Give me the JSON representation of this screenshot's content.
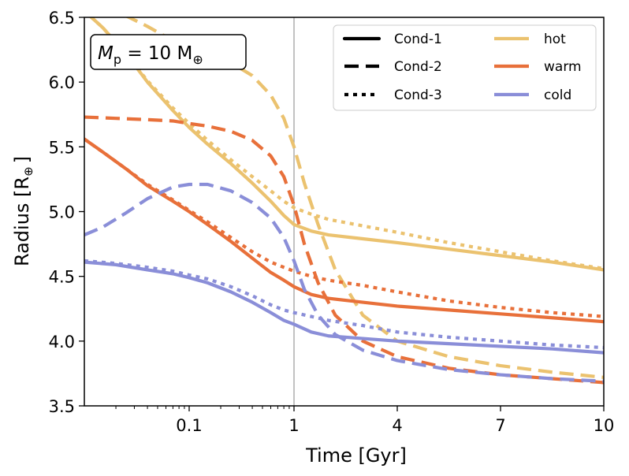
{
  "chart_data": {
    "type": "line",
    "title": "",
    "annotation": {
      "symbol": "M",
      "subscript": "p",
      "equals": " = 10 M",
      "unit_symbol": "⊕"
    },
    "xlabel": "Time [Gyr]",
    "ylabel": "Radius [R",
    "ylabel_symbol": "⊕",
    "ylabel_close": "]",
    "xlim": [
      0.01,
      10
    ],
    "ylim": [
      3.5,
      6.5
    ],
    "x_ticks": [
      {
        "value": 0.1,
        "label": "0.1"
      },
      {
        "value": 1,
        "label": "1"
      },
      {
        "value": 4,
        "label": "4"
      },
      {
        "value": 7,
        "label": "7"
      },
      {
        "value": 10,
        "label": "10"
      }
    ],
    "y_ticks": [
      {
        "value": 3.5,
        "label": "3.5"
      },
      {
        "value": 4.0,
        "label": "4.0"
      },
      {
        "value": 4.5,
        "label": "4.5"
      },
      {
        "value": 5.0,
        "label": "5.0"
      },
      {
        "value": 5.5,
        "label": "5.5"
      },
      {
        "value": 6.0,
        "label": "6.0"
      },
      {
        "value": 6.5,
        "label": "6.5"
      }
    ],
    "vline_x": 1,
    "colors": {
      "hot": "#EBC26F",
      "warm": "#E8703A",
      "cold": "#8A8ED8"
    },
    "legend": {
      "styles": [
        {
          "label": "Cond-1",
          "dash": "solid"
        },
        {
          "label": "Cond-2",
          "dash": "dashed"
        },
        {
          "label": "Cond-3",
          "dash": "dotted"
        }
      ],
      "temps": [
        {
          "label": "hot",
          "key": "hot"
        },
        {
          "label": "warm",
          "key": "warm"
        },
        {
          "label": "cold",
          "key": "cold"
        }
      ]
    },
    "series": [
      {
        "name": "hot Cond-1",
        "temp": "hot",
        "cond": "Cond-1",
        "x": [
          0.01,
          0.015,
          0.025,
          0.04,
          0.07,
          0.1,
          0.15,
          0.25,
          0.4,
          0.6,
          0.8,
          1.0,
          1.5,
          2.0,
          3.0,
          4.0,
          5.5,
          7.0,
          8.5,
          10.0
        ],
        "y": [
          6.55,
          6.42,
          6.22,
          6.0,
          5.78,
          5.65,
          5.52,
          5.37,
          5.22,
          5.08,
          4.97,
          4.9,
          4.85,
          4.82,
          4.79,
          4.76,
          4.71,
          4.66,
          4.61,
          4.55
        ]
      },
      {
        "name": "hot Cond-2",
        "temp": "hot",
        "cond": "Cond-2",
        "x": [
          0.01,
          0.02,
          0.04,
          0.07,
          0.1,
          0.15,
          0.25,
          0.4,
          0.6,
          0.8,
          1.0,
          1.3,
          1.7,
          2.2,
          3.0,
          4.0,
          5.5,
          7.0,
          8.5,
          10.0
        ],
        "y": [
          6.62,
          6.55,
          6.43,
          6.32,
          6.26,
          6.21,
          6.15,
          6.05,
          5.9,
          5.72,
          5.5,
          5.22,
          4.9,
          4.55,
          4.2,
          4.0,
          3.88,
          3.81,
          3.76,
          3.72
        ]
      },
      {
        "name": "hot Cond-3",
        "temp": "hot",
        "cond": "Cond-3",
        "x": [
          0.01,
          0.015,
          0.025,
          0.04,
          0.07,
          0.1,
          0.15,
          0.25,
          0.4,
          0.6,
          0.8,
          1.0,
          1.5,
          2.0,
          3.0,
          4.0,
          5.5,
          7.0,
          8.5,
          10.0
        ],
        "y": [
          6.55,
          6.42,
          6.22,
          6.01,
          5.8,
          5.68,
          5.55,
          5.4,
          5.27,
          5.16,
          5.08,
          5.03,
          4.98,
          4.94,
          4.89,
          4.84,
          4.76,
          4.69,
          4.62,
          4.56
        ]
      },
      {
        "name": "warm Cond-1",
        "temp": "warm",
        "cond": "Cond-1",
        "x": [
          0.01,
          0.015,
          0.025,
          0.04,
          0.07,
          0.1,
          0.15,
          0.25,
          0.4,
          0.6,
          0.8,
          1.0,
          1.5,
          2.0,
          3.0,
          4.0,
          5.5,
          7.0,
          8.5,
          10.0
        ],
        "y": [
          5.56,
          5.46,
          5.33,
          5.2,
          5.08,
          5.0,
          4.9,
          4.77,
          4.64,
          4.53,
          4.47,
          4.42,
          4.36,
          4.33,
          4.3,
          4.27,
          4.24,
          4.21,
          4.18,
          4.15
        ]
      },
      {
        "name": "warm Cond-2",
        "temp": "warm",
        "cond": "Cond-2",
        "x": [
          0.01,
          0.02,
          0.04,
          0.07,
          0.1,
          0.15,
          0.25,
          0.4,
          0.6,
          0.8,
          1.0,
          1.3,
          1.7,
          2.2,
          3.0,
          4.0,
          5.5,
          7.0,
          8.5,
          10.0
        ],
        "y": [
          5.73,
          5.72,
          5.71,
          5.7,
          5.68,
          5.66,
          5.62,
          5.55,
          5.43,
          5.27,
          5.05,
          4.75,
          4.45,
          4.2,
          4.0,
          3.88,
          3.79,
          3.74,
          3.71,
          3.68
        ]
      },
      {
        "name": "warm Cond-3",
        "temp": "warm",
        "cond": "Cond-3",
        "x": [
          0.01,
          0.015,
          0.025,
          0.04,
          0.07,
          0.1,
          0.15,
          0.25,
          0.4,
          0.6,
          0.8,
          1.0,
          1.5,
          2.0,
          3.0,
          4.0,
          5.5,
          7.0,
          8.5,
          10.0
        ],
        "y": [
          5.56,
          5.46,
          5.33,
          5.21,
          5.09,
          5.01,
          4.92,
          4.8,
          4.69,
          4.61,
          4.57,
          4.54,
          4.5,
          4.47,
          4.43,
          4.38,
          4.31,
          4.26,
          4.22,
          4.19
        ]
      },
      {
        "name": "cold Cond-1",
        "temp": "cold",
        "cond": "Cond-1",
        "x": [
          0.01,
          0.02,
          0.04,
          0.07,
          0.1,
          0.15,
          0.25,
          0.4,
          0.6,
          0.8,
          1.0,
          1.5,
          2.0,
          3.0,
          4.0,
          5.5,
          7.0,
          8.5,
          10.0
        ],
        "y": [
          4.61,
          4.59,
          4.55,
          4.52,
          4.49,
          4.45,
          4.38,
          4.3,
          4.22,
          4.16,
          4.13,
          4.07,
          4.04,
          4.02,
          4.0,
          3.98,
          3.96,
          3.94,
          3.91
        ]
      },
      {
        "name": "cold Cond-2",
        "temp": "cold",
        "cond": "Cond-2",
        "x": [
          0.01,
          0.015,
          0.025,
          0.04,
          0.07,
          0.1,
          0.15,
          0.25,
          0.4,
          0.6,
          0.8,
          1.0,
          1.3,
          1.7,
          2.2,
          3.0,
          4.0,
          5.5,
          7.0,
          8.5,
          10.0
        ],
        "y": [
          4.82,
          4.88,
          4.99,
          5.1,
          5.19,
          5.21,
          5.21,
          5.16,
          5.07,
          4.95,
          4.8,
          4.62,
          4.4,
          4.2,
          4.05,
          3.93,
          3.85,
          3.78,
          3.74,
          3.71,
          3.69
        ]
      },
      {
        "name": "cold Cond-3",
        "temp": "cold",
        "cond": "Cond-3",
        "x": [
          0.01,
          0.02,
          0.04,
          0.07,
          0.1,
          0.15,
          0.25,
          0.4,
          0.6,
          0.8,
          1.0,
          1.5,
          2.0,
          3.0,
          4.0,
          5.5,
          7.0,
          8.5,
          10.0
        ],
        "y": [
          4.62,
          4.6,
          4.57,
          4.54,
          4.51,
          4.48,
          4.42,
          4.35,
          4.28,
          4.24,
          4.22,
          4.19,
          4.16,
          4.12,
          4.07,
          4.03,
          4.0,
          3.97,
          3.95
        ]
      }
    ]
  }
}
